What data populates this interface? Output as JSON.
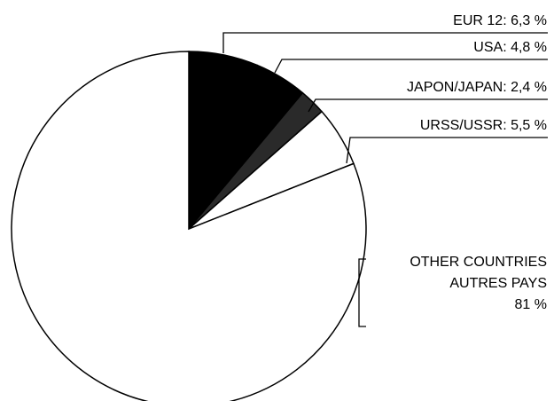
{
  "chart_data": {
    "type": "pie",
    "categories": [
      "EUR 12",
      "USA",
      "JAPON/JAPAN",
      "URSS/USSR",
      "OTHER COUNTRIES\nAUTRES PAYS"
    ],
    "values": [
      6.3,
      4.8,
      2.4,
      5.5,
      81
    ],
    "value_labels": [
      "6,3 %",
      "4,8 %",
      "2,4 %",
      "5,5 %",
      "81 %"
    ],
    "colors": [
      "#000000",
      "#000000",
      "#2a2a2a",
      "#ffffff",
      "#ffffff"
    ]
  }
}
